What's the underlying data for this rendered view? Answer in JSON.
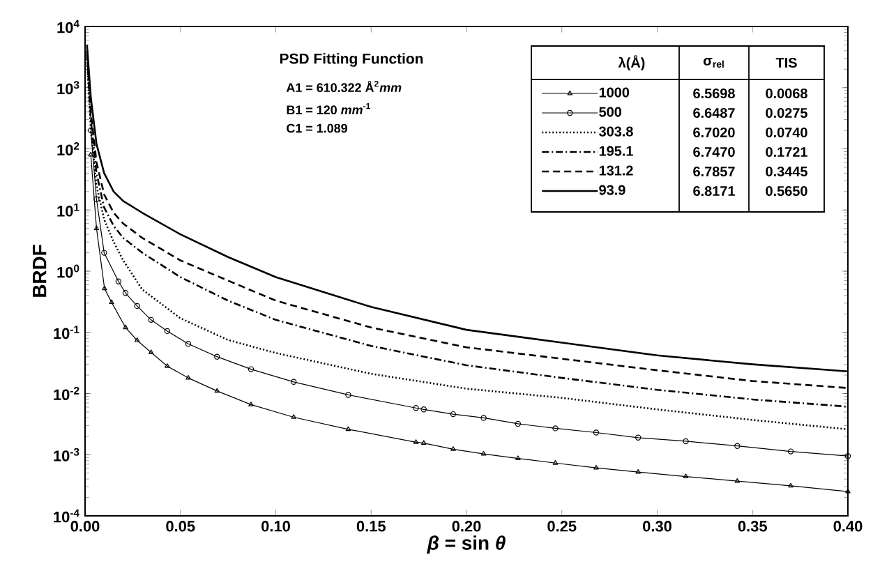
{
  "chart_data": {
    "type": "line",
    "xlabel": "*β* = sin *θ*",
    "ylabel": "BRDF",
    "legend_title": "λ(Å)",
    "legend": "top right",
    "log": "y",
    "xlim": [
      0,
      0.4
    ],
    "ylim": [
      0.0001,
      10000
    ],
    "xticks": [
      {
        "value": 0,
        "label": "0.00"
      },
      {
        "value": 0.05,
        "label": "0.05"
      },
      {
        "value": 0.1,
        "label": "0.10"
      },
      {
        "value": 0.15,
        "label": "0.15"
      },
      {
        "value": 0.2,
        "label": "0.20"
      },
      {
        "value": 0.25,
        "label": "0.25"
      },
      {
        "value": 0.3,
        "label": "0.30"
      },
      {
        "value": 0.35,
        "label": "0.35"
      },
      {
        "value": 0.4,
        "label": "0.40"
      }
    ],
    "yticks": [
      {
        "value": 0.0001,
        "label": "10$^{-4}$"
      },
      {
        "value": 0.001,
        "label": "10$^{-3}$"
      },
      {
        "value": 0.01,
        "label": "10$^{-2}$"
      },
      {
        "value": 0.1,
        "label": "10$^{-1}$"
      },
      {
        "value": 1,
        "label": "10$^{0}$"
      },
      {
        "value": 10,
        "label": "10$^{1}$"
      },
      {
        "value": 100,
        "label": "10$^{2}$"
      },
      {
        "value": 1000,
        "label": "10$^{3}$"
      },
      {
        "value": 10000,
        "label": "10$^{4}$"
      }
    ],
    "x": [
      0.001,
      0.003,
      0.006,
      0.01,
      0.015,
      0.02,
      0.03,
      0.05,
      0.075,
      0.1,
      0.15,
      0.2,
      0.25,
      0.3,
      0.35,
      0.4
    ],
    "series": [
      {
        "name": "1000",
        "color": "#000000",
        "marker": "triangle",
        "line_style": "solid",
        "x": [
          0.003,
          0.006,
          0.0102,
          0.0139,
          0.0212,
          0.0273,
          0.0346,
          0.0431,
          0.0541,
          0.0692,
          0.087,
          0.1094,
          0.138,
          0.1735,
          0.1776,
          0.193,
          0.209,
          0.227,
          0.2466,
          0.268,
          0.29,
          0.315,
          0.342,
          0.37,
          0.4
        ],
        "values": [
          80,
          5,
          0.52,
          0.31,
          0.12,
          0.074,
          0.047,
          0.028,
          0.018,
          0.011,
          0.0066,
          0.0041,
          0.0026,
          0.0016,
          0.00155,
          0.00123,
          0.00103,
          0.00087,
          0.00073,
          0.00061,
          0.00052,
          0.00044,
          0.00037,
          0.00031,
          0.00025
        ]
      },
      {
        "name": "500",
        "color": "#000000",
        "marker": "circle",
        "line_style": "solid",
        "x": [
          0.003,
          0.006,
          0.01,
          0.0175,
          0.0212,
          0.0273,
          0.0346,
          0.0431,
          0.0541,
          0.0692,
          0.087,
          0.1094,
          0.138,
          0.1735,
          0.1776,
          0.193,
          0.209,
          0.227,
          0.2466,
          0.268,
          0.29,
          0.315,
          0.342,
          0.37,
          0.4
        ],
        "values": [
          200,
          15,
          2,
          0.68,
          0.44,
          0.27,
          0.16,
          0.105,
          0.065,
          0.04,
          0.025,
          0.0155,
          0.0095,
          0.0058,
          0.0055,
          0.0046,
          0.004,
          0.0032,
          0.0027,
          0.0023,
          0.0019,
          0.00166,
          0.00139,
          0.00113,
          0.00095
        ]
      },
      {
        "name": "303.8",
        "color": "#000000",
        "marker": "none",
        "line_style": "dotted",
        "values": [
          3000,
          200,
          25,
          7,
          3,
          1.5,
          0.5,
          0.17,
          0.075,
          0.046,
          0.021,
          0.012,
          0.0085,
          0.0055,
          0.0037,
          0.0026
        ]
      },
      {
        "name": "195.1",
        "color": "#000000",
        "marker": "none",
        "line_style": "dashdot",
        "values": [
          3500,
          300,
          40,
          11,
          5.5,
          3.5,
          2,
          0.8,
          0.33,
          0.16,
          0.06,
          0.029,
          0.018,
          0.0115,
          0.008,
          0.0061
        ]
      },
      {
        "name": "131.2",
        "color": "#000000",
        "marker": "none",
        "line_style": "dashed",
        "values": [
          4000,
          400,
          60,
          18,
          9,
          6,
          3.5,
          1.5,
          0.7,
          0.33,
          0.12,
          0.057,
          0.037,
          0.024,
          0.016,
          0.0123
        ]
      },
      {
        "name": "93.9",
        "color": "#000000",
        "marker": "none",
        "line_style": "solid",
        "values": [
          5000,
          700,
          120,
          40,
          20,
          14,
          9,
          4,
          1.7,
          0.8,
          0.26,
          0.11,
          0.068,
          0.042,
          0.03,
          0.023
        ]
      }
    ],
    "annotations": [
      "PSD Fitting Function",
      "A1 = 610.322  Å$^{2}$*mm*",
      "B1 = 120  *mm*$^{-1}$",
      "C1 = 1.089",
      "σ$_{rel}$",
      "TIS",
      "6.5698",
      "0.0068",
      "6.6487",
      "0.0275",
      "6.7020",
      "0.0740",
      "6.7470",
      "0.1721",
      "6.7857",
      "0.3445",
      "6.8171",
      "0.5650"
    ]
  }
}
